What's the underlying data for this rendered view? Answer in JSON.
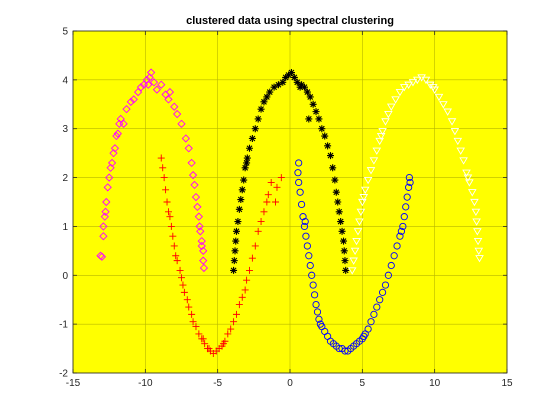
{
  "chart_data": {
    "type": "scatter",
    "title": "clustered data using spectral clustering",
    "xlabel": "",
    "ylabel": "",
    "xlim": [
      -15,
      15
    ],
    "ylim": [
      -2,
      5
    ],
    "xticks": [
      -15,
      -10,
      -5,
      0,
      5,
      10,
      15
    ],
    "yticks": [
      -2,
      -1,
      0,
      1,
      2,
      3,
      4,
      5
    ],
    "grid": true,
    "background_color": "#ffff00",
    "series": [
      {
        "marker": "diamond",
        "color": "#ff00ff",
        "points": [
          [
            -13.0,
            0.38
          ],
          [
            -13.1,
            0.4
          ],
          [
            -12.9,
            0.8
          ],
          [
            -12.9,
            1.0
          ],
          [
            -12.8,
            1.2
          ],
          [
            -12.7,
            1.5
          ],
          [
            -12.6,
            1.8
          ],
          [
            -12.5,
            2.0
          ],
          [
            -12.4,
            2.2
          ],
          [
            -12.2,
            2.5
          ],
          [
            -12.1,
            2.6
          ],
          [
            -12.0,
            2.85
          ],
          [
            -11.8,
            3.1
          ],
          [
            -11.7,
            3.2
          ],
          [
            -11.5,
            3.1
          ],
          [
            -11.3,
            3.4
          ],
          [
            -11.0,
            3.55
          ],
          [
            -10.8,
            3.6
          ],
          [
            -10.5,
            3.75
          ],
          [
            -10.3,
            3.85
          ],
          [
            -10.1,
            3.9
          ],
          [
            -9.9,
            4.0
          ],
          [
            -9.7,
            4.05
          ],
          [
            -9.6,
            4.15
          ],
          [
            -9.4,
            3.95
          ],
          [
            -9.2,
            3.8
          ],
          [
            -8.9,
            3.9
          ],
          [
            -8.6,
            3.7
          ],
          [
            -8.3,
            3.75
          ],
          [
            -8.0,
            3.45
          ],
          [
            -7.8,
            3.3
          ],
          [
            -7.5,
            3.1
          ],
          [
            -7.2,
            2.8
          ],
          [
            -7.0,
            2.6
          ],
          [
            -6.8,
            2.3
          ],
          [
            -6.7,
            2.05
          ],
          [
            -6.6,
            1.85
          ],
          [
            -6.5,
            1.6
          ],
          [
            -6.4,
            1.4
          ],
          [
            -6.3,
            1.2
          ],
          [
            -6.2,
            0.9
          ],
          [
            -6.1,
            0.7
          ],
          [
            -6.0,
            0.5
          ],
          [
            -6.0,
            0.3
          ],
          [
            -5.95,
            0.15
          ],
          [
            -6.1,
            0.6
          ],
          [
            -6.25,
            1.0
          ],
          [
            -8.4,
            3.6
          ],
          [
            -9.8,
            3.9
          ],
          [
            -11.9,
            2.9
          ],
          [
            -12.3,
            2.3
          ],
          [
            -12.75,
            1.3
          ]
        ]
      },
      {
        "marker": "plus",
        "color": "#ff0000",
        "points": [
          [
            -8.9,
            2.4
          ],
          [
            -8.8,
            2.2
          ],
          [
            -8.7,
            2.0
          ],
          [
            -8.6,
            1.75
          ],
          [
            -8.5,
            1.5
          ],
          [
            -8.4,
            1.3
          ],
          [
            -8.3,
            1.2
          ],
          [
            -8.2,
            1.0
          ],
          [
            -8.1,
            0.8
          ],
          [
            -8.0,
            0.6
          ],
          [
            -7.9,
            0.4
          ],
          [
            -7.8,
            0.3
          ],
          [
            -7.6,
            0.1
          ],
          [
            -7.5,
            -0.05
          ],
          [
            -7.4,
            -0.2
          ],
          [
            -7.3,
            -0.35
          ],
          [
            -7.1,
            -0.5
          ],
          [
            -7.0,
            -0.65
          ],
          [
            -6.8,
            -0.8
          ],
          [
            -6.7,
            -0.95
          ],
          [
            -6.5,
            -1.05
          ],
          [
            -6.3,
            -1.2
          ],
          [
            -6.1,
            -1.3
          ],
          [
            -5.9,
            -1.4
          ],
          [
            -5.7,
            -1.5
          ],
          [
            -5.5,
            -1.55
          ],
          [
            -5.3,
            -1.6
          ],
          [
            -5.1,
            -1.55
          ],
          [
            -4.9,
            -1.5
          ],
          [
            -4.7,
            -1.45
          ],
          [
            -4.5,
            -1.35
          ],
          [
            -4.3,
            -1.2
          ],
          [
            -4.1,
            -1.1
          ],
          [
            -3.9,
            -0.95
          ],
          [
            -3.7,
            -0.8
          ],
          [
            -3.5,
            -0.6
          ],
          [
            -3.3,
            -0.45
          ],
          [
            -3.1,
            -0.3
          ],
          [
            -3.0,
            -0.1
          ],
          [
            -2.8,
            0.1
          ],
          [
            -2.6,
            0.35
          ],
          [
            -2.4,
            0.6
          ],
          [
            -2.2,
            0.9
          ],
          [
            -2.0,
            1.1
          ],
          [
            -1.8,
            1.3
          ],
          [
            -1.6,
            1.5
          ],
          [
            -1.5,
            1.65
          ],
          [
            -1.3,
            1.9
          ],
          [
            -1.0,
            1.5
          ],
          [
            -0.9,
            1.8
          ],
          [
            -0.6,
            2.0
          ],
          [
            -6.0,
            -1.3
          ],
          [
            -5.6,
            -1.5
          ],
          [
            -4.6,
            -1.4
          ]
        ]
      },
      {
        "marker": "asterisk",
        "color": "#000000",
        "points": [
          [
            -3.9,
            0.1
          ],
          [
            -3.85,
            0.3
          ],
          [
            -3.8,
            0.5
          ],
          [
            -3.75,
            0.7
          ],
          [
            -3.7,
            0.9
          ],
          [
            -3.6,
            1.1
          ],
          [
            -3.5,
            1.35
          ],
          [
            -3.4,
            1.55
          ],
          [
            -3.3,
            1.75
          ],
          [
            -3.2,
            1.95
          ],
          [
            -3.1,
            2.2
          ],
          [
            -2.95,
            2.4
          ],
          [
            -2.8,
            2.6
          ],
          [
            -2.6,
            2.8
          ],
          [
            -2.4,
            3.0
          ],
          [
            -2.2,
            3.2
          ],
          [
            -2.0,
            3.4
          ],
          [
            -1.8,
            3.55
          ],
          [
            -1.6,
            3.65
          ],
          [
            -1.4,
            3.75
          ],
          [
            -1.1,
            3.85
          ],
          [
            -0.8,
            3.9
          ],
          [
            -0.5,
            3.95
          ],
          [
            -0.3,
            4.05
          ],
          [
            -0.1,
            4.1
          ],
          [
            0.1,
            4.15
          ],
          [
            0.3,
            4.05
          ],
          [
            0.5,
            3.95
          ],
          [
            0.8,
            3.9
          ],
          [
            1.0,
            3.85
          ],
          [
            1.2,
            3.75
          ],
          [
            1.4,
            3.65
          ],
          [
            1.6,
            3.5
          ],
          [
            1.8,
            3.35
          ],
          [
            2.0,
            3.2
          ],
          [
            2.2,
            3.0
          ],
          [
            2.4,
            2.85
          ],
          [
            2.6,
            2.65
          ],
          [
            2.8,
            2.45
          ],
          [
            2.95,
            2.2
          ],
          [
            3.1,
            1.95
          ],
          [
            3.2,
            1.7
          ],
          [
            3.3,
            1.5
          ],
          [
            3.4,
            1.3
          ],
          [
            3.5,
            1.1
          ],
          [
            3.6,
            0.9
          ],
          [
            3.7,
            0.7
          ],
          [
            3.75,
            0.5
          ],
          [
            3.8,
            0.3
          ],
          [
            3.85,
            0.1
          ],
          [
            -3.0,
            2.3
          ],
          [
            1.3,
            3.2
          ],
          [
            0.7,
            3.85
          ]
        ]
      },
      {
        "marker": "circle",
        "color": "#0000ff",
        "points": [
          [
            0.6,
            2.3
          ],
          [
            0.55,
            2.1
          ],
          [
            0.6,
            1.9
          ],
          [
            0.7,
            1.7
          ],
          [
            0.8,
            1.45
          ],
          [
            0.9,
            1.2
          ],
          [
            1.0,
            1.0
          ],
          [
            1.1,
            0.8
          ],
          [
            1.2,
            0.6
          ],
          [
            1.3,
            0.4
          ],
          [
            1.4,
            0.2
          ],
          [
            1.5,
            0.0
          ],
          [
            1.6,
            -0.2
          ],
          [
            1.7,
            -0.4
          ],
          [
            1.8,
            -0.6
          ],
          [
            1.9,
            -0.75
          ],
          [
            2.0,
            -0.9
          ],
          [
            2.2,
            -1.05
          ],
          [
            2.4,
            -1.15
          ],
          [
            2.6,
            -1.25
          ],
          [
            2.8,
            -1.35
          ],
          [
            3.0,
            -1.4
          ],
          [
            3.2,
            -1.45
          ],
          [
            3.4,
            -1.5
          ],
          [
            3.6,
            -1.5
          ],
          [
            3.8,
            -1.55
          ],
          [
            4.0,
            -1.55
          ],
          [
            4.2,
            -1.5
          ],
          [
            4.4,
            -1.45
          ],
          [
            4.6,
            -1.4
          ],
          [
            4.8,
            -1.35
          ],
          [
            5.0,
            -1.3
          ],
          [
            5.2,
            -1.2
          ],
          [
            5.4,
            -1.1
          ],
          [
            5.6,
            -0.95
          ],
          [
            5.8,
            -0.8
          ],
          [
            6.0,
            -0.65
          ],
          [
            6.2,
            -0.5
          ],
          [
            6.4,
            -0.35
          ],
          [
            6.6,
            -0.2
          ],
          [
            6.8,
            0.0
          ],
          [
            7.0,
            0.2
          ],
          [
            7.2,
            0.4
          ],
          [
            7.4,
            0.6
          ],
          [
            7.6,
            0.8
          ],
          [
            7.8,
            1.0
          ],
          [
            7.9,
            1.2
          ],
          [
            8.0,
            1.4
          ],
          [
            8.1,
            1.6
          ],
          [
            8.2,
            1.8
          ],
          [
            8.25,
            2.0
          ],
          [
            8.3,
            1.9
          ],
          [
            1.05,
            1.1
          ],
          [
            2.1,
            -1.0
          ],
          [
            5.1,
            -1.25
          ],
          [
            7.7,
            0.9
          ]
        ]
      },
      {
        "marker": "triangle-down",
        "color": "#ffffff",
        "points": [
          [
            4.3,
            0.1
          ],
          [
            4.4,
            0.3
          ],
          [
            4.5,
            0.5
          ],
          [
            4.6,
            0.7
          ],
          [
            4.7,
            0.9
          ],
          [
            4.8,
            1.1
          ],
          [
            4.9,
            1.3
          ],
          [
            5.0,
            1.5
          ],
          [
            5.2,
            1.75
          ],
          [
            5.4,
            1.95
          ],
          [
            5.6,
            2.15
          ],
          [
            5.8,
            2.35
          ],
          [
            6.0,
            2.55
          ],
          [
            6.2,
            2.75
          ],
          [
            6.4,
            2.95
          ],
          [
            6.6,
            3.15
          ],
          [
            6.8,
            3.3
          ],
          [
            7.0,
            3.45
          ],
          [
            7.3,
            3.6
          ],
          [
            7.6,
            3.75
          ],
          [
            7.9,
            3.85
          ],
          [
            8.2,
            3.9
          ],
          [
            8.5,
            3.95
          ],
          [
            8.8,
            4.0
          ],
          [
            9.1,
            4.05
          ],
          [
            9.4,
            4.0
          ],
          [
            9.7,
            3.9
          ],
          [
            10.0,
            3.8
          ],
          [
            10.3,
            3.65
          ],
          [
            10.6,
            3.5
          ],
          [
            10.9,
            3.35
          ],
          [
            11.2,
            3.15
          ],
          [
            11.4,
            2.95
          ],
          [
            11.6,
            2.75
          ],
          [
            11.8,
            2.55
          ],
          [
            12.0,
            2.35
          ],
          [
            12.2,
            2.1
          ],
          [
            12.4,
            1.9
          ],
          [
            12.6,
            1.7
          ],
          [
            12.75,
            1.5
          ],
          [
            12.85,
            1.3
          ],
          [
            12.9,
            1.1
          ],
          [
            12.95,
            0.9
          ],
          [
            13.0,
            0.7
          ],
          [
            13.05,
            0.5
          ],
          [
            13.1,
            0.35
          ],
          [
            5.1,
            1.6
          ],
          [
            6.3,
            2.85
          ],
          [
            9.9,
            3.85
          ],
          [
            12.3,
            2.0
          ]
        ]
      }
    ]
  }
}
